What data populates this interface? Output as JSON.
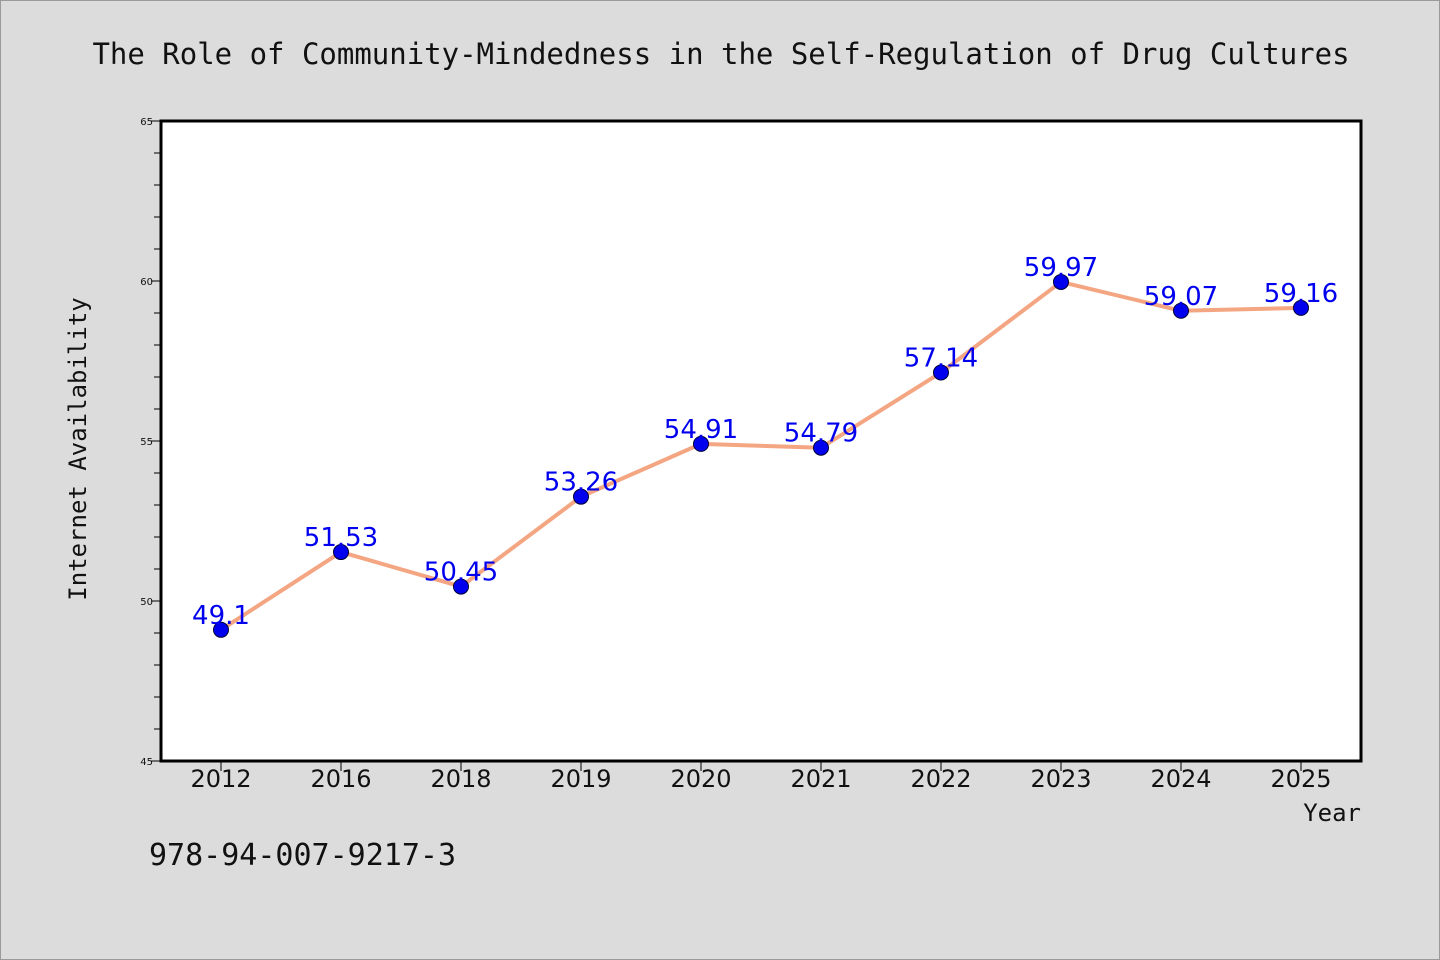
{
  "chart_data": {
    "type": "line",
    "title": "The Role of Community-Mindedness in the Self-Regulation of Drug Cultures",
    "xlabel": "Year",
    "ylabel": "Internet Availability",
    "categories": [
      "2012",
      "2016",
      "2018",
      "2019",
      "2020",
      "2021",
      "2022",
      "2023",
      "2024",
      "2025"
    ],
    "series": [
      {
        "values": [
          49.1,
          51.53,
          50.45,
          53.26,
          54.91,
          54.79,
          57.14,
          59.97,
          59.07,
          59.16
        ],
        "labels": [
          "49.1",
          "51.53",
          "50.45",
          "53.26",
          "54.91",
          "54.79",
          "57.14",
          "59.97",
          "59.07",
          "59.16"
        ]
      }
    ],
    "ylim": [
      45,
      65
    ],
    "yticks": [
      45,
      50,
      55,
      60,
      65
    ],
    "grid": false,
    "legend": "none"
  },
  "footer": {
    "isbn": "978-94-007-9217-3"
  },
  "colors": {
    "background": "#dcdcdc",
    "plot_background": "#ffffff",
    "line": "#f4a582",
    "marker": "#0000ee",
    "data_label": "#0000ee",
    "text": "#111111"
  }
}
